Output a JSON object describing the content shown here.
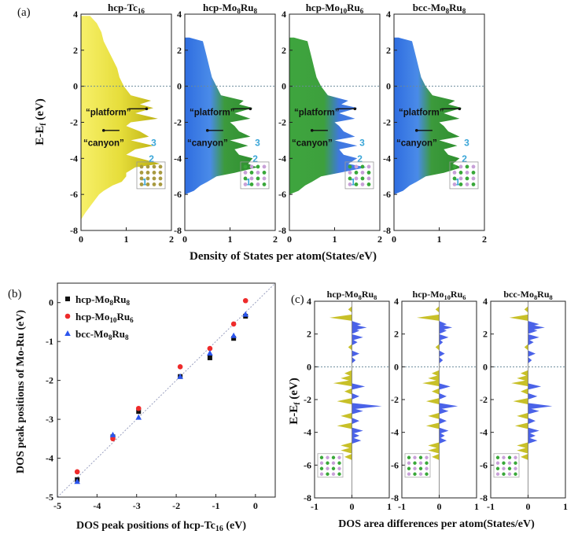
{
  "figure": {
    "panel_a": {
      "tag": "(a)",
      "ylabel_main": "E-E",
      "ylabel_sub": "f",
      "ylabel_tail": " (eV)",
      "xlabel": "Density of States per atom(States/eV)",
      "yticks": [
        "4",
        "2",
        "0",
        "-2",
        "-4",
        "-6",
        "-8"
      ],
      "xticks": [
        "0",
        "1",
        "2"
      ],
      "titles": [
        {
          "base": "hcp-Tc",
          "sub": "16",
          "rest": ""
        },
        {
          "base": "hcp-Mo",
          "sub": "8",
          "rest": "Ru",
          "sub2": "8"
        },
        {
          "base": "hcp-Mo",
          "sub": "10",
          "rest": "Ru",
          "sub2": "6"
        },
        {
          "base": "bcc-Mo",
          "sub": "8",
          "rest": "Ru",
          "sub2": "8"
        }
      ],
      "annotations": {
        "platform": "“platform”",
        "canyon": "“canyon”",
        "peaks": [
          "3",
          "2",
          "1"
        ]
      }
    },
    "panel_b": {
      "tag": "(b)",
      "xlabel": "DOS peak positions of hcp-Tc",
      "xlabel_sub": "16",
      "xlabel_tail": " (eV)",
      "ylabel": "DOS peak positions of Mo-Ru (eV)",
      "xticks": [
        "-5",
        "-4",
        "-3",
        "-2",
        "-1",
        "0"
      ],
      "yticks": [
        "0",
        "-1",
        "-2",
        "-3",
        "-4",
        "-5"
      ],
      "legend": [
        {
          "base": "hcp-Mo",
          "sub": "8",
          "rest": "Ru",
          "sub2": "8",
          "color": "#111111",
          "marker": "square"
        },
        {
          "base": "hcp-Mo",
          "sub": "10",
          "rest": "Ru",
          "sub2": "6",
          "color": "#ee2b2b",
          "marker": "circle"
        },
        {
          "base": "bcc-Mo",
          "sub": "8",
          "rest": "Ru",
          "sub2": "8",
          "color": "#2b55ee",
          "marker": "triangle"
        }
      ]
    },
    "panel_c": {
      "tag": "(c)",
      "ylabel_main": "E-E",
      "ylabel_sub": "f",
      "ylabel_tail": " (eV)",
      "xlabel": "DOS area differences per atom(States/eV)",
      "yticks": [
        "4",
        "2",
        "0",
        "-2",
        "-4",
        "-6",
        "-8"
      ],
      "xticks": [
        "-1",
        "0",
        "1"
      ],
      "titles": [
        {
          "base": "hcp-Mo",
          "sub": "8",
          "rest": "Ru",
          "sub2": "8"
        },
        {
          "base": "hcp-Mo",
          "sub": "10",
          "rest": "Ru",
          "sub2": "6"
        },
        {
          "base": "bcc-Mo",
          "sub": "8",
          "rest": "Ru",
          "sub2": "8"
        }
      ]
    }
  },
  "chart_data": [
    {
      "type": "area",
      "panel": "a",
      "xlabel": "Density of States per atom(States/eV)",
      "ylabel": "E-Ef (eV)",
      "xlim": [
        0,
        2
      ],
      "ylim": [
        -8,
        4
      ],
      "fermi_level": 0,
      "series": [
        {
          "name": "hcp-Tc16",
          "color": "#e6dd3a",
          "energy": [
            3.9,
            3.5,
            3.0,
            2.5,
            2.0,
            1.5,
            1.0,
            0.5,
            0.0,
            -0.5,
            -0.8,
            -1.0,
            -1.2,
            -1.5,
            -1.8,
            -2.0,
            -2.2,
            -2.5,
            -2.8,
            -3.0,
            -3.3,
            -3.5,
            -3.8,
            -4.0,
            -4.3,
            -4.5,
            -4.8,
            -5.0,
            -5.3,
            -5.5,
            -5.8,
            -6.0,
            -6.5,
            -7.0,
            -7.4
          ],
          "dos": [
            0.2,
            0.35,
            0.45,
            0.5,
            0.6,
            0.7,
            0.8,
            0.85,
            0.95,
            1.1,
            1.55,
            1.3,
            1.6,
            1.2,
            1.7,
            1.1,
            1.0,
            1.3,
            1.5,
            1.1,
            1.6,
            1.2,
            1.0,
            1.3,
            1.75,
            1.2,
            1.0,
            1.0,
            0.9,
            0.7,
            0.5,
            0.4,
            0.25,
            0.1,
            0.0
          ]
        },
        {
          "name": "hcp-Mo8Ru8",
          "color": "#4a7ee8",
          "energy": [
            2.7,
            2.5,
            2.0,
            1.5,
            1.0,
            0.5,
            0.0,
            -0.5,
            -0.8,
            -1.0,
            -1.2,
            -1.5,
            -1.8,
            -2.0,
            -2.2,
            -2.5,
            -2.8,
            -3.0,
            -3.3,
            -3.5,
            -3.8,
            -4.0,
            -4.3,
            -4.5,
            -4.8,
            -5.0,
            -5.3,
            -5.5,
            -5.8,
            -6.0
          ],
          "dos": [
            0.1,
            0.4,
            0.45,
            0.5,
            0.55,
            0.6,
            0.7,
            0.8,
            1.3,
            1.2,
            1.5,
            1.1,
            1.45,
            1.0,
            1.1,
            1.2,
            1.45,
            1.0,
            1.4,
            1.1,
            1.2,
            1.5,
            1.4,
            1.6,
            1.1,
            0.7,
            0.5,
            0.35,
            0.2,
            0.0
          ]
        },
        {
          "name": "hcp-Mo10Ru6",
          "color": "#4a7ee8",
          "energy": [
            2.7,
            2.5,
            2.0,
            1.5,
            1.0,
            0.5,
            0.0,
            -0.5,
            -0.8,
            -1.0,
            -1.2,
            -1.5,
            -1.8,
            -2.0,
            -2.2,
            -2.5,
            -2.8,
            -3.0,
            -3.3,
            -3.5,
            -3.8,
            -4.0,
            -4.3,
            -4.5,
            -4.8,
            -5.0,
            -5.3,
            -5.5,
            -5.8,
            -6.0
          ],
          "dos": [
            0.1,
            0.4,
            0.45,
            0.5,
            0.55,
            0.6,
            0.7,
            0.85,
            1.3,
            1.15,
            1.5,
            1.1,
            1.45,
            1.0,
            1.1,
            1.2,
            1.45,
            1.0,
            1.5,
            1.1,
            1.2,
            1.5,
            1.3,
            1.7,
            1.1,
            0.7,
            0.5,
            0.35,
            0.2,
            0.0
          ]
        },
        {
          "name": "bcc-Mo8Ru8",
          "color": "#4a7ee8",
          "energy": [
            2.7,
            2.5,
            2.0,
            1.5,
            1.0,
            0.5,
            0.0,
            -0.5,
            -0.8,
            -1.0,
            -1.2,
            -1.5,
            -1.8,
            -2.0,
            -2.2,
            -2.5,
            -2.8,
            -3.0,
            -3.3,
            -3.5,
            -3.8,
            -4.0,
            -4.3,
            -4.5,
            -4.8,
            -5.0,
            -5.3,
            -5.5,
            -5.8,
            -6.0
          ],
          "dos": [
            0.1,
            0.4,
            0.45,
            0.5,
            0.55,
            0.6,
            0.7,
            0.85,
            1.35,
            1.2,
            1.5,
            1.1,
            1.45,
            1.0,
            1.1,
            1.2,
            1.45,
            1.0,
            1.4,
            1.1,
            1.2,
            1.45,
            1.3,
            1.5,
            1.1,
            0.7,
            0.5,
            0.35,
            0.2,
            0.0
          ]
        }
      ]
    },
    {
      "type": "scatter",
      "panel": "b",
      "xlabel": "DOS peak positions of hcp-Tc16 (eV)",
      "ylabel": "DOS peak positions of Mo-Ru (eV)",
      "xlim": [
        -5,
        0.5
      ],
      "ylim": [
        -5,
        0.5
      ],
      "reference_line": "y = x",
      "legend_position": "top-left",
      "series": [
        {
          "name": "hcp-Mo8Ru8",
          "marker": "square",
          "color": "#111111",
          "x": [
            -4.5,
            -3.6,
            -2.95,
            -1.9,
            -1.15,
            -0.55,
            -0.25
          ],
          "y": [
            -4.55,
            -3.45,
            -2.8,
            -1.9,
            -1.42,
            -0.92,
            -0.35
          ]
        },
        {
          "name": "hcp-Mo10Ru6",
          "marker": "circle",
          "color": "#ee2b2b",
          "x": [
            -4.5,
            -3.6,
            -2.95,
            -1.9,
            -1.15,
            -0.55,
            -0.25
          ],
          "y": [
            -4.35,
            -3.5,
            -2.72,
            -1.65,
            -1.18,
            -0.55,
            0.05
          ]
        },
        {
          "name": "bcc-Mo8Ru8",
          "marker": "triangle",
          "color": "#2b55ee",
          "x": [
            -4.5,
            -3.6,
            -2.95,
            -1.9,
            -1.15,
            -0.55,
            -0.25
          ],
          "y": [
            -4.6,
            -3.4,
            -2.95,
            -1.9,
            -1.3,
            -0.85,
            -0.3
          ]
        }
      ]
    },
    {
      "type": "bar",
      "panel": "c",
      "orientation": "horizontal",
      "xlabel": "DOS area differences per atom(States/eV)",
      "ylabel": "E-Ef (eV)",
      "xlim": [
        -1,
        1
      ],
      "ylim": [
        -8,
        4
      ],
      "fermi_level": 0,
      "series": [
        {
          "name": "hcp-Mo8Ru8",
          "energy": [
            3.5,
            3.0,
            2.6,
            2.4,
            2.2,
            1.8,
            1.5,
            1.2,
            0.8,
            0.4,
            -0.4,
            -0.7,
            -1.0,
            -1.2,
            -1.5,
            -1.8,
            -2.1,
            -2.4,
            -2.7,
            -3.0,
            -3.3,
            -3.6,
            -3.9,
            -4.2,
            -4.5,
            -4.8,
            -5.1,
            -5.5
          ],
          "diff": [
            -0.1,
            -0.6,
            0.25,
            0.4,
            0.2,
            0.3,
            0.15,
            -0.1,
            0.2,
            0.1,
            -0.2,
            -0.3,
            -0.5,
            0.35,
            -0.2,
            0.2,
            -0.4,
            0.8,
            0.3,
            -0.3,
            0.2,
            -0.4,
            0.3,
            0.2,
            0.25,
            -0.3,
            -0.3,
            -0.2
          ]
        },
        {
          "name": "hcp-Mo10Ru6",
          "energy": [
            3.5,
            3.0,
            2.6,
            2.4,
            2.2,
            1.8,
            1.5,
            1.2,
            0.8,
            0.4,
            -0.4,
            -0.7,
            -1.0,
            -1.2,
            -1.5,
            -1.8,
            -2.1,
            -2.4,
            -2.7,
            -3.0,
            -3.3,
            -3.6,
            -3.9,
            -4.2,
            -4.5,
            -4.8,
            -5.1,
            -5.5
          ],
          "diff": [
            -0.1,
            -0.6,
            0.2,
            0.35,
            0.2,
            0.25,
            0.1,
            -0.1,
            0.15,
            0.1,
            -0.2,
            -0.3,
            -0.45,
            0.3,
            -0.2,
            0.2,
            -0.35,
            0.5,
            0.25,
            -0.3,
            0.2,
            -0.35,
            0.25,
            0.15,
            0.2,
            -0.3,
            -0.3,
            -0.2
          ]
        },
        {
          "name": "bcc-Mo8Ru8",
          "energy": [
            3.5,
            3.0,
            2.6,
            2.4,
            2.2,
            1.8,
            1.5,
            1.2,
            0.8,
            0.4,
            -0.4,
            -0.7,
            -1.0,
            -1.2,
            -1.5,
            -1.8,
            -2.1,
            -2.4,
            -2.7,
            -3.0,
            -3.3,
            -3.6,
            -3.9,
            -4.2,
            -4.5,
            -4.8,
            -5.1,
            -5.5
          ],
          "diff": [
            -0.1,
            -0.5,
            0.3,
            0.45,
            0.25,
            0.3,
            0.15,
            -0.1,
            0.2,
            0.1,
            -0.2,
            -0.3,
            -0.45,
            0.35,
            -0.2,
            0.25,
            -0.4,
            0.65,
            0.3,
            -0.3,
            0.2,
            -0.35,
            0.3,
            0.2,
            0.25,
            -0.3,
            -0.3,
            -0.2
          ]
        }
      ]
    }
  ]
}
